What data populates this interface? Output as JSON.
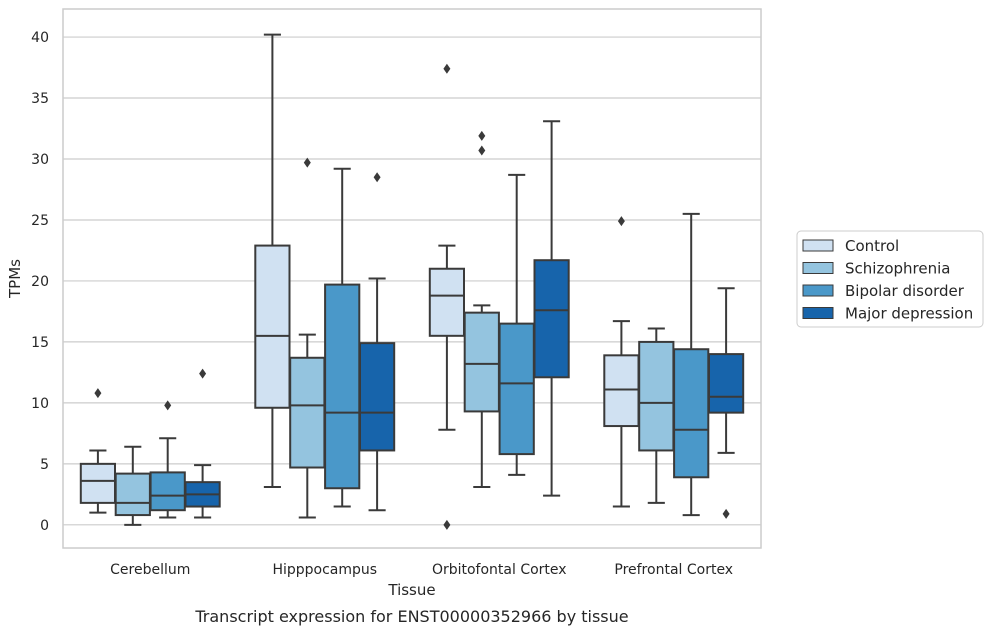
{
  "chart_data": {
    "type": "box",
    "xlabel": "Tissue",
    "ylabel": "TPMs",
    "caption": "Transcript expression for ENST00000352966 by tissue",
    "ylim": [
      -1.9,
      42.3
    ],
    "yticks": [
      0,
      5,
      10,
      15,
      20,
      25,
      30,
      35,
      40
    ],
    "grid": "horizontal",
    "legend_position": "right",
    "categories": [
      "Cerebellum",
      "Hipppocampus",
      "Orbitofontal Cortex",
      "Prefrontal Cortex"
    ],
    "series": [
      {
        "name": "Control",
        "color": "#d0e1f2",
        "boxes": [
          {
            "whislo": 1.0,
            "q1": 1.8,
            "med": 3.6,
            "q3": 5.0,
            "whishi": 6.1,
            "fliers": [
              10.8
            ]
          },
          {
            "whislo": 3.1,
            "q1": 9.6,
            "med": 15.5,
            "q3": 22.9,
            "whishi": 40.2,
            "fliers": []
          },
          {
            "whislo": 7.8,
            "q1": 15.5,
            "med": 18.8,
            "q3": 21.0,
            "whishi": 22.9,
            "fliers": [
              0.0,
              37.4
            ]
          },
          {
            "whislo": 1.5,
            "q1": 8.1,
            "med": 11.1,
            "q3": 13.9,
            "whishi": 16.7,
            "fliers": [
              24.9
            ]
          }
        ]
      },
      {
        "name": "Schizophrenia",
        "color": "#94c4df",
        "boxes": [
          {
            "whislo": 0.0,
            "q1": 0.8,
            "med": 1.8,
            "q3": 4.2,
            "whishi": 6.4,
            "fliers": []
          },
          {
            "whislo": 0.6,
            "q1": 4.7,
            "med": 9.8,
            "q3": 13.7,
            "whishi": 15.6,
            "fliers": [
              29.7
            ]
          },
          {
            "whislo": 3.1,
            "q1": 9.3,
            "med": 13.2,
            "q3": 17.4,
            "whishi": 18.0,
            "fliers": [
              30.7,
              31.9
            ]
          },
          {
            "whislo": 1.8,
            "q1": 6.1,
            "med": 10.0,
            "q3": 15.0,
            "whishi": 16.1,
            "fliers": []
          }
        ]
      },
      {
        "name": "Bipolar disorder",
        "color": "#4a98c9",
        "boxes": [
          {
            "whislo": 0.6,
            "q1": 1.2,
            "med": 2.4,
            "q3": 4.3,
            "whishi": 7.1,
            "fliers": [
              9.8
            ]
          },
          {
            "whislo": 1.5,
            "q1": 3.0,
            "med": 9.2,
            "q3": 19.7,
            "whishi": 29.2,
            "fliers": []
          },
          {
            "whislo": 4.1,
            "q1": 5.8,
            "med": 11.6,
            "q3": 16.5,
            "whishi": 28.7,
            "fliers": []
          },
          {
            "whislo": 0.8,
            "q1": 3.9,
            "med": 7.8,
            "q3": 14.4,
            "whishi": 25.5,
            "fliers": []
          }
        ]
      },
      {
        "name": "Major depression",
        "color": "#1764ab",
        "boxes": [
          {
            "whislo": 0.6,
            "q1": 1.5,
            "med": 2.5,
            "q3": 3.5,
            "whishi": 4.9,
            "fliers": [
              12.4
            ]
          },
          {
            "whislo": 1.2,
            "q1": 6.1,
            "med": 9.2,
            "q3": 14.9,
            "whishi": 20.2,
            "fliers": [
              28.5
            ]
          },
          {
            "whislo": 2.4,
            "q1": 12.1,
            "med": 17.6,
            "q3": 21.7,
            "whishi": 33.1,
            "fliers": []
          },
          {
            "whislo": 5.9,
            "q1": 9.2,
            "med": 10.5,
            "q3": 14.0,
            "whishi": 19.4,
            "fliers": [
              0.9
            ]
          }
        ]
      }
    ]
  }
}
